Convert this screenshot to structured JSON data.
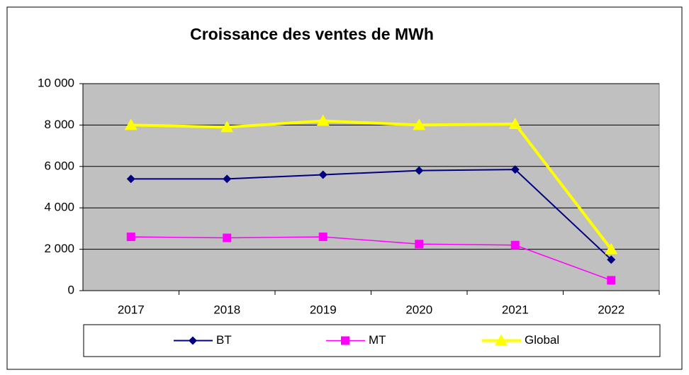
{
  "chart_data": {
    "type": "line",
    "title": "Croissance  des ventes de MWh",
    "categories": [
      "2017",
      "2018",
      "2019",
      "2020",
      "2021",
      "2022"
    ],
    "series": [
      {
        "name": "BT",
        "color": "#000080",
        "marker": "diamond",
        "values": [
          5400,
          5400,
          5600,
          5800,
          5850,
          1500
        ]
      },
      {
        "name": "MT",
        "color": "#ff00ff",
        "marker": "square",
        "values": [
          2600,
          2550,
          2600,
          2250,
          2200,
          500
        ]
      },
      {
        "name": "Global",
        "color": "#ffff00",
        "marker": "triangle",
        "values": [
          8000,
          7900,
          8200,
          8000,
          8050,
          2000
        ]
      }
    ],
    "ylim": [
      0,
      10000
    ],
    "yticks": [
      0,
      {
        "value": 2000,
        "label": "2 000"
      },
      {
        "value": 4000,
        "label": "4 000"
      },
      {
        "value": 6000,
        "label": "6 000"
      },
      {
        "value": 8000,
        "label": "8 000"
      },
      {
        "value": 10000,
        "label": "10 000"
      }
    ],
    "grid": true,
    "legend": "bottom",
    "plot_background": "#c0c0c0"
  }
}
